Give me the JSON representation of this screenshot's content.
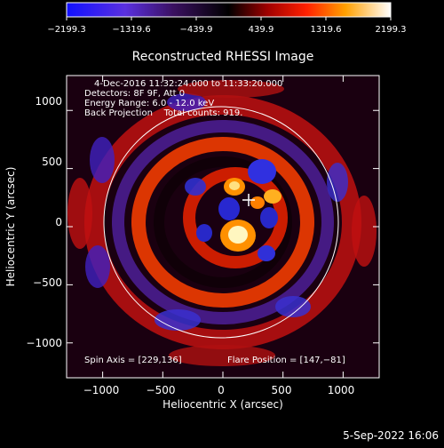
{
  "colorbar": {
    "tick_labels": [
      "−2199.3",
      "−1319.6",
      "−439.9",
      "439.9",
      "1319.6",
      "2199.3"
    ],
    "min": -2199.3,
    "max": 2199.3
  },
  "chart_data": {
    "type": "heatmap",
    "title": "Reconstructed RHESSI Image",
    "xlabel": "Heliocentric X (arcsec)",
    "ylabel": "Heliocentric Y (arcsec)",
    "xlim": [
      -1300,
      1300
    ],
    "ylim": [
      -1300,
      1300
    ],
    "xticks": [
      -1000,
      -500,
      0,
      500,
      1000
    ],
    "yticks": [
      -1000,
      -500,
      0,
      500,
      1000
    ],
    "xtick_labels": [
      "−1000",
      "−500",
      "0",
      "500",
      "1000"
    ],
    "ytick_labels": [
      "1000",
      "500",
      "0",
      "−500",
      "−1000"
    ],
    "colormap": "blue-purple-black-red-orange-yellow-white",
    "solar_disk_radius_arcsec": 975,
    "sources": [
      {
        "x": 150,
        "y": -100,
        "value": 2199.3,
        "kind": "bright"
      },
      {
        "x": 120,
        "y": 300,
        "value": 1500,
        "kind": "bright"
      },
      {
        "x": 410,
        "y": 210,
        "value": 1000,
        "kind": "bright"
      },
      {
        "x": 310,
        "y": 70,
        "value": 900,
        "kind": "bright"
      },
      {
        "x": 350,
        "y": 410,
        "value": -1800,
        "kind": "negative"
      },
      {
        "x": 60,
        "y": 120,
        "value": -1500,
        "kind": "negative"
      }
    ],
    "annotations": {
      "time_range": "4-Dec-2016 11:32:24.000 to 11:33:20.000",
      "detectors": "Detectors: 8F 9F, Att 0",
      "energy_range": "Energy Range: 6.0 - 12.0 keV",
      "method_counts": "Back Projection    Total counts: 919.",
      "spin_axis": "Spin Axis = [229,136]",
      "flare_position": "Flare Position = [147,−81]",
      "date_stamp": "5-Sep-2022 16:06"
    }
  }
}
